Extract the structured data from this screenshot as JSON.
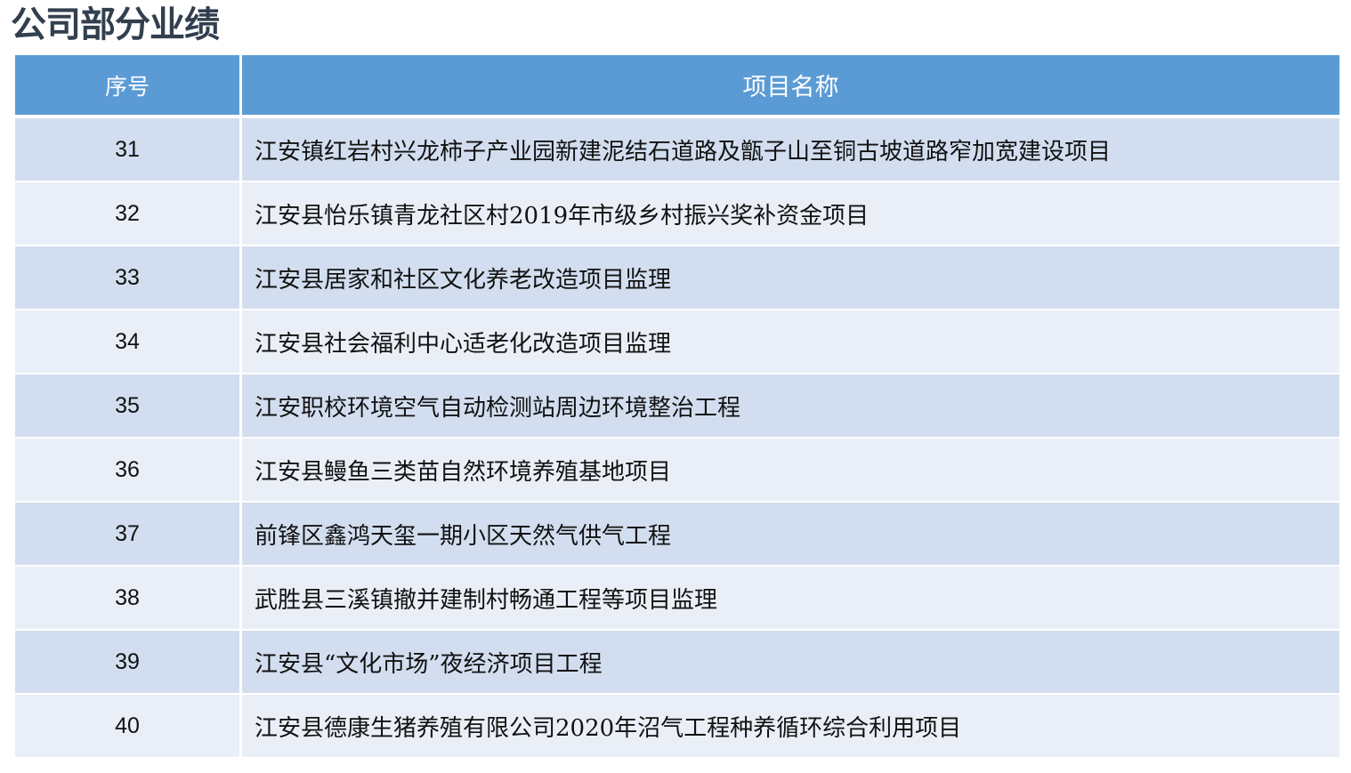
{
  "title": "公司部分业绩",
  "colors": {
    "header_bg": "#5B9BD5",
    "row_odd": "#D2DEEF",
    "row_even": "#EAEFF7",
    "title": "#323F4F"
  },
  "table": {
    "headers": [
      "序号",
      "项目名称"
    ],
    "rows": [
      {
        "no": "31",
        "name": "江安镇红岩村兴龙柿子产业园新建泥结石道路及甑子山至铜古坡道路窄加宽建设项目"
      },
      {
        "no": "32",
        "name": "江安县怡乐镇青龙社区村2019年市级乡村振兴奖补资金项目"
      },
      {
        "no": "33",
        "name": "江安县居家和社区文化养老改造项目监理"
      },
      {
        "no": "34",
        "name": "江安县社会福利中心适老化改造项目监理"
      },
      {
        "no": "35",
        "name": "江安职校环境空气自动检测站周边环境整治工程"
      },
      {
        "no": "36",
        "name": "江安县鳗鱼三类苗自然环境养殖基地项目"
      },
      {
        "no": "37",
        "name": "前锋区鑫鸿天玺一期小区天然气供气工程"
      },
      {
        "no": "38",
        "name": "武胜县三溪镇撤并建制村畅通工程等项目监理"
      },
      {
        "no": "39",
        "name": "江安县“文化市场”夜经济项目工程"
      },
      {
        "no": "40",
        "name": "江安县德康生猪养殖有限公司2020年沼气工程种养循环综合利用项目"
      }
    ]
  }
}
